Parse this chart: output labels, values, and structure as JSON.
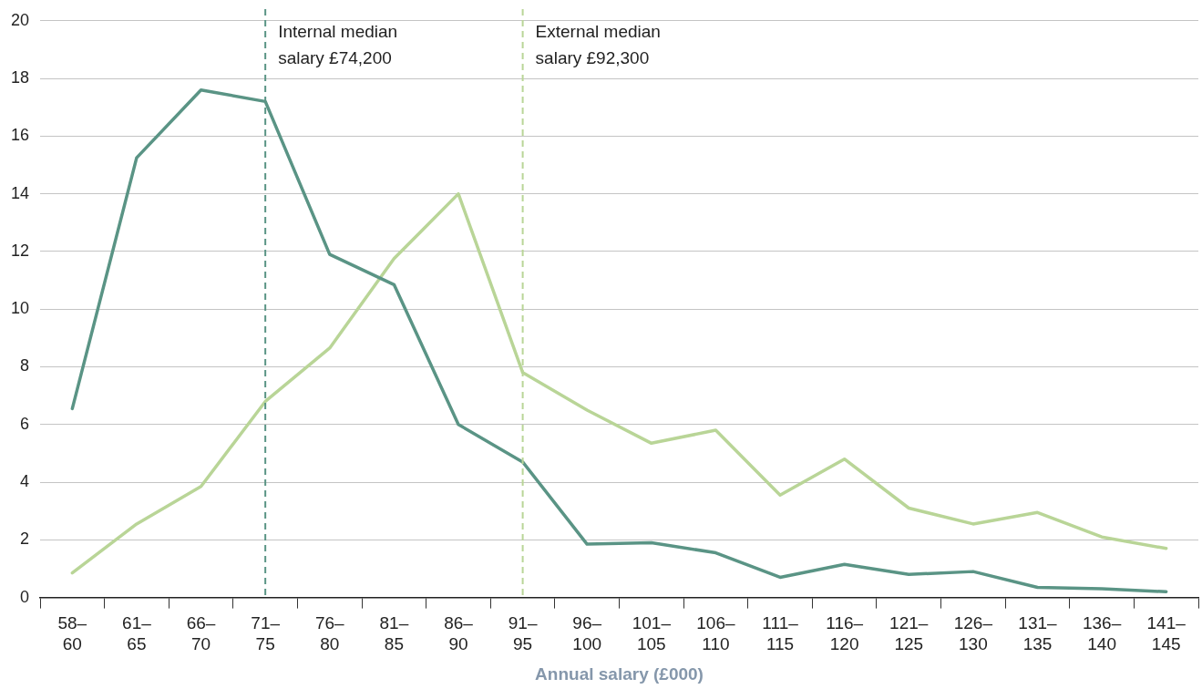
{
  "chart_data": {
    "type": "line",
    "xlabel": "Annual salary (£000)",
    "categories": [
      "58–60",
      "61–65",
      "66–70",
      "71–75",
      "76–80",
      "81–85",
      "86–90",
      "91–95",
      "96–100",
      "101–105",
      "106–110",
      "111–115",
      "116–120",
      "121–125",
      "126–130",
      "131–135",
      "136–140",
      "141–145"
    ],
    "series": [
      {
        "color": "#5a9485",
        "values": [
          6.55,
          15.25,
          17.6,
          17.2,
          11.9,
          10.85,
          6.0,
          4.7,
          1.85,
          1.9,
          1.55,
          0.7,
          1.15,
          0.8,
          0.9,
          0.35,
          0.3,
          0.2
        ]
      },
      {
        "color": "#b9d597",
        "values": [
          0.85,
          2.55,
          3.85,
          6.8,
          8.65,
          11.75,
          14.0,
          7.8,
          6.5,
          5.35,
          5.8,
          3.55,
          4.8,
          3.1,
          2.55,
          2.95,
          2.1,
          1.7
        ]
      }
    ],
    "ylim": [
      0,
      20
    ],
    "yticks": [
      0,
      2,
      4,
      6,
      8,
      10,
      12,
      14,
      16,
      18,
      20
    ],
    "grid": "y",
    "legend": false,
    "marker": "none",
    "line_style": "solid",
    "ref_lines": [
      {
        "axis": "x",
        "value": "71–75",
        "label": "Internal median\nsalary £74,200",
        "color": "#5a9485",
        "line_style": "dashed"
      },
      {
        "axis": "x",
        "value": "91–95",
        "label": "External median\nsalary £92,300",
        "color": "#b9d597",
        "line_style": "dashed"
      }
    ]
  }
}
